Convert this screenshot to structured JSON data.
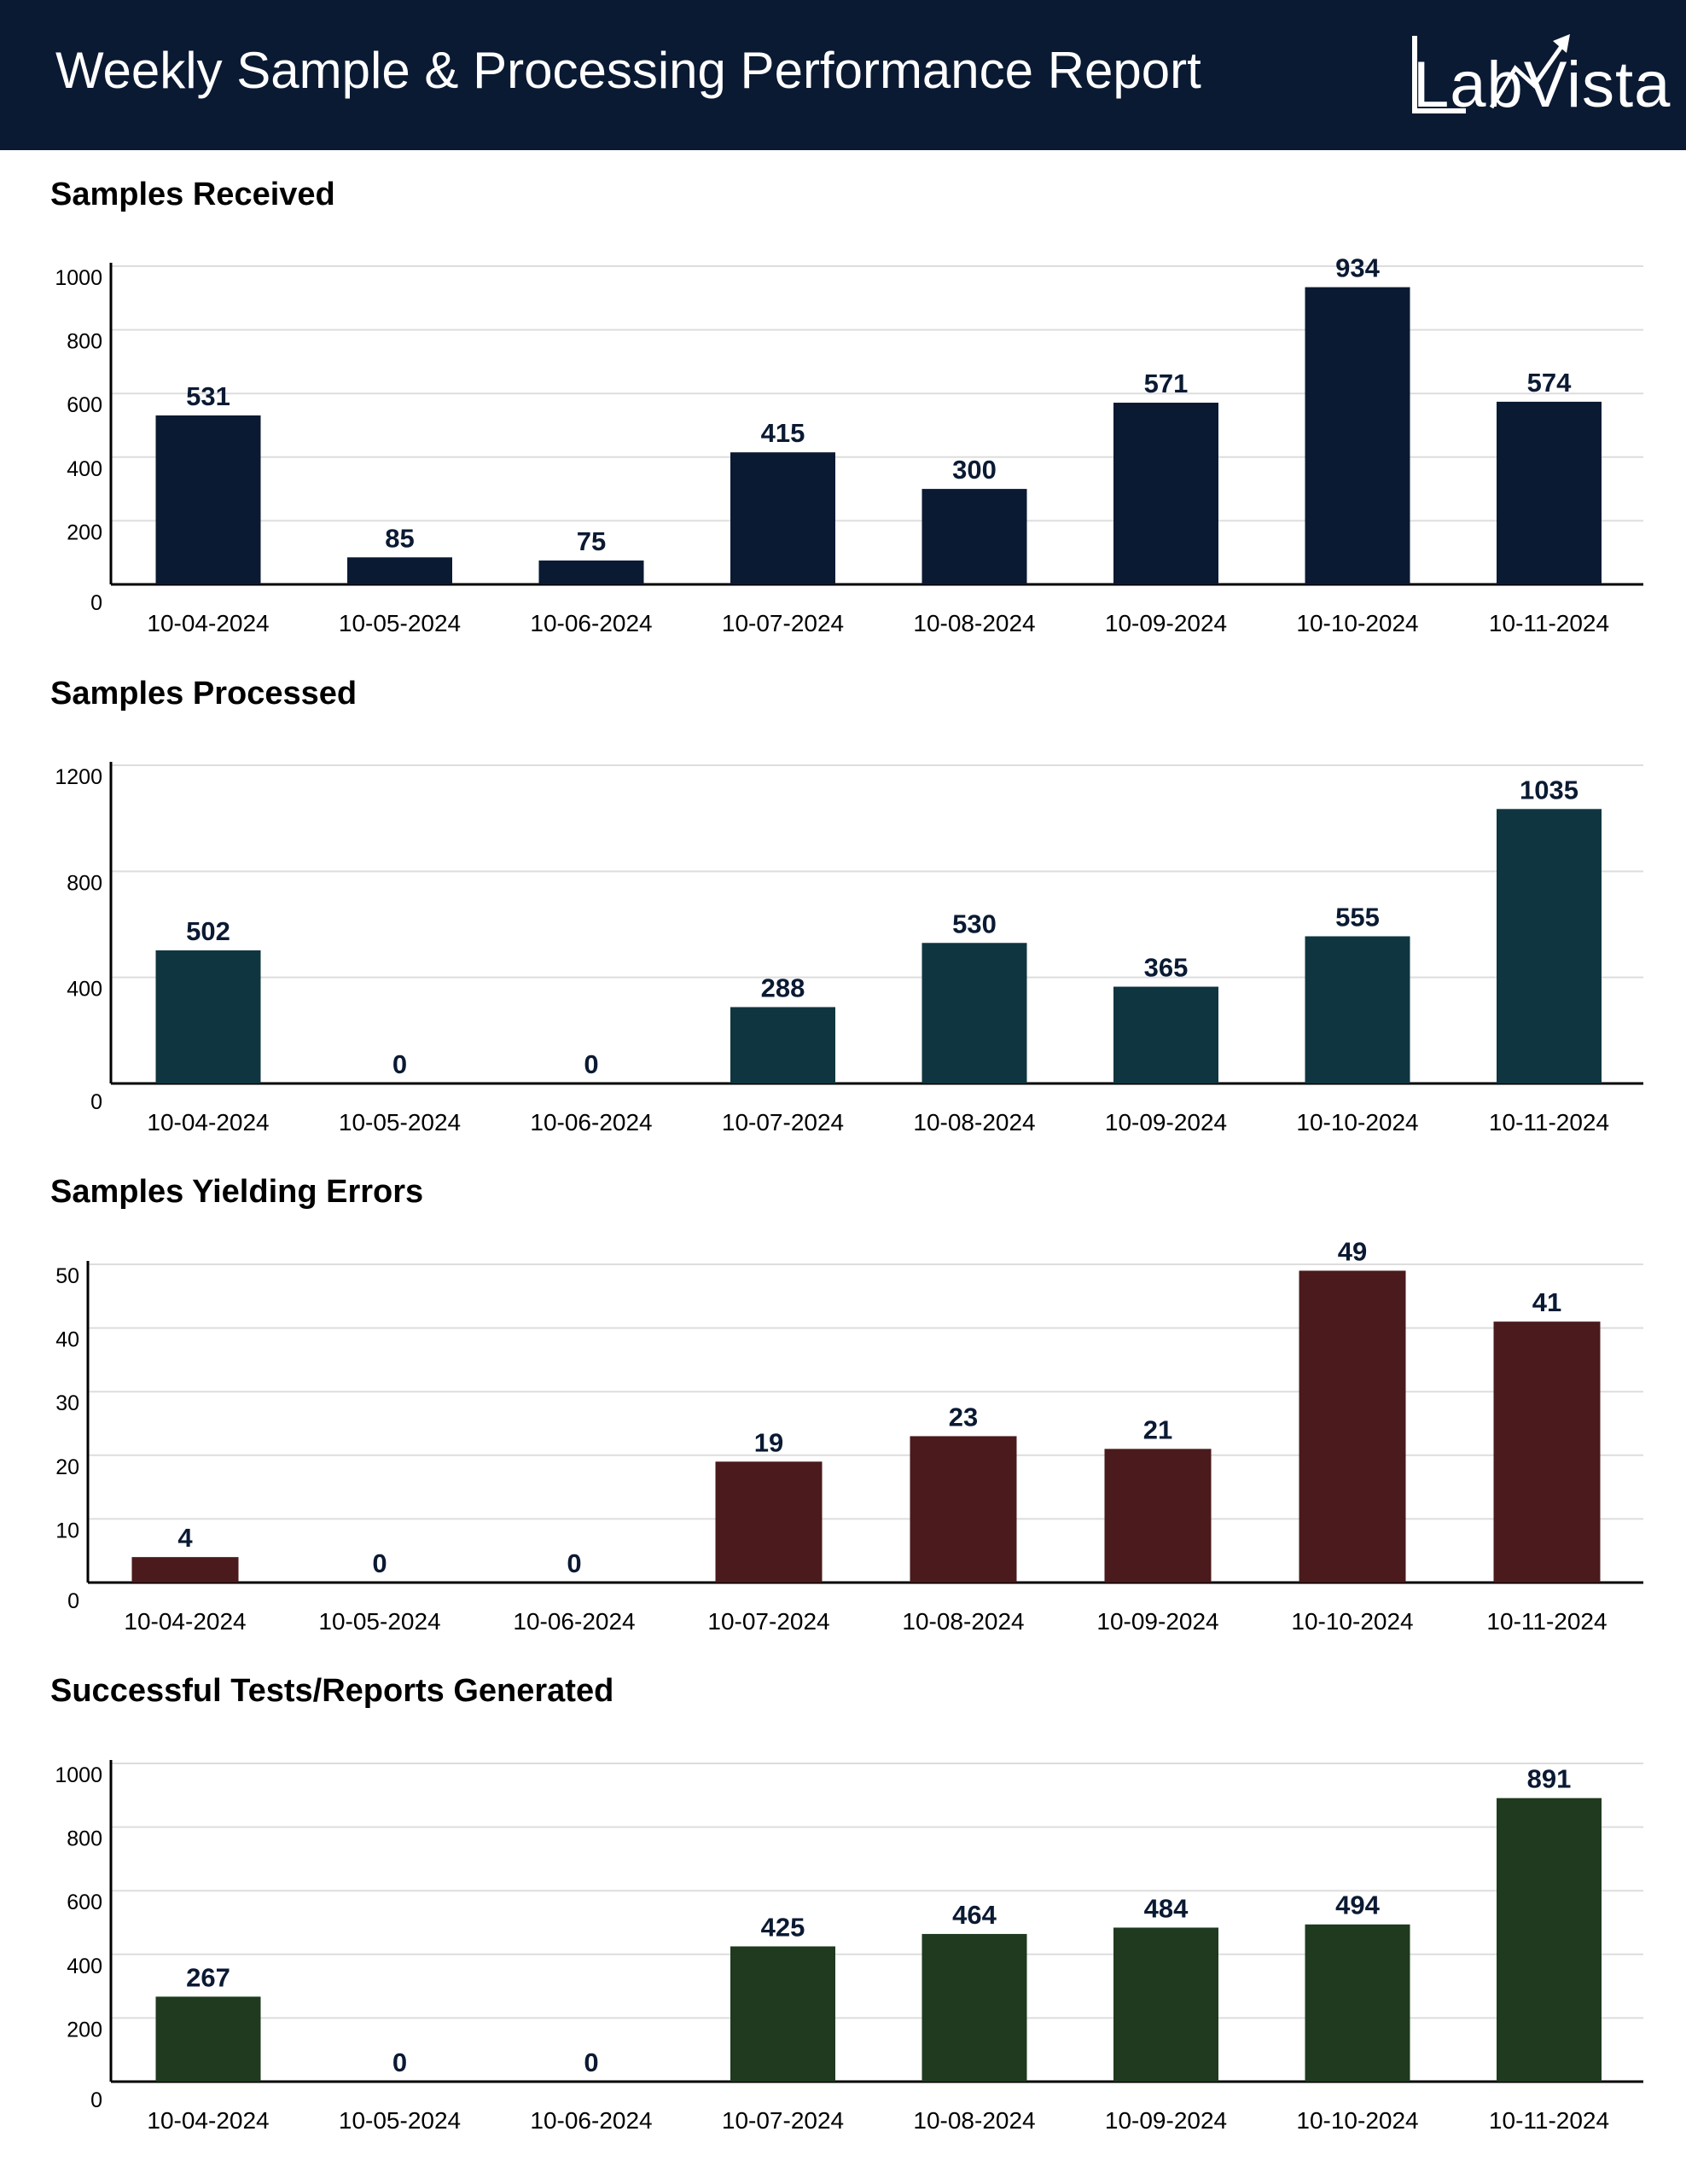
{
  "header": {
    "title": "Weekly Sample & Processing Performance Report",
    "logo_text": "LabVista",
    "background": "#0b1a33"
  },
  "chart_data": [
    {
      "type": "bar",
      "title": "Samples Received",
      "categories": [
        "10-04-2024",
        "10-05-2024",
        "10-06-2024",
        "10-07-2024",
        "10-08-2024",
        "10-09-2024",
        "10-10-2024",
        "10-11-2024"
      ],
      "values": [
        531,
        85,
        75,
        415,
        300,
        571,
        934,
        574
      ],
      "yticks": [
        0,
        200,
        400,
        600,
        800,
        1000
      ],
      "ylim": [
        0,
        1000
      ],
      "xlabel": "",
      "ylabel": "",
      "grid": true,
      "color": "#0b1a33"
    },
    {
      "type": "bar",
      "title": "Samples Processed",
      "categories": [
        "10-04-2024",
        "10-05-2024",
        "10-06-2024",
        "10-07-2024",
        "10-08-2024",
        "10-09-2024",
        "10-10-2024",
        "10-11-2024"
      ],
      "values": [
        502,
        0,
        0,
        288,
        530,
        365,
        555,
        1035
      ],
      "yticks": [
        0,
        400,
        800,
        1200
      ],
      "ylim": [
        0,
        1200
      ],
      "xlabel": "",
      "ylabel": "",
      "grid": true,
      "color": "#0f3640"
    },
    {
      "type": "bar",
      "title": "Samples Yielding Errors",
      "categories": [
        "10-04-2024",
        "10-05-2024",
        "10-06-2024",
        "10-07-2024",
        "10-08-2024",
        "10-09-2024",
        "10-10-2024",
        "10-11-2024"
      ],
      "values": [
        4,
        0,
        0,
        19,
        23,
        21,
        49,
        41
      ],
      "yticks": [
        0,
        10,
        20,
        30,
        40,
        50
      ],
      "ylim": [
        0,
        50
      ],
      "xlabel": "",
      "ylabel": "",
      "grid": true,
      "color": "#4a1a1c"
    },
    {
      "type": "bar",
      "title": "Successful Tests/Reports Generated",
      "categories": [
        "10-04-2024",
        "10-05-2024",
        "10-06-2024",
        "10-07-2024",
        "10-08-2024",
        "10-09-2024",
        "10-10-2024",
        "10-11-2024"
      ],
      "values": [
        267,
        0,
        0,
        425,
        464,
        484,
        494,
        891
      ],
      "yticks": [
        0,
        200,
        400,
        600,
        800,
        1000
      ],
      "ylim": [
        0,
        1000
      ],
      "xlabel": "",
      "ylabel": "",
      "grid": true,
      "color": "#1f3a1f"
    }
  ]
}
